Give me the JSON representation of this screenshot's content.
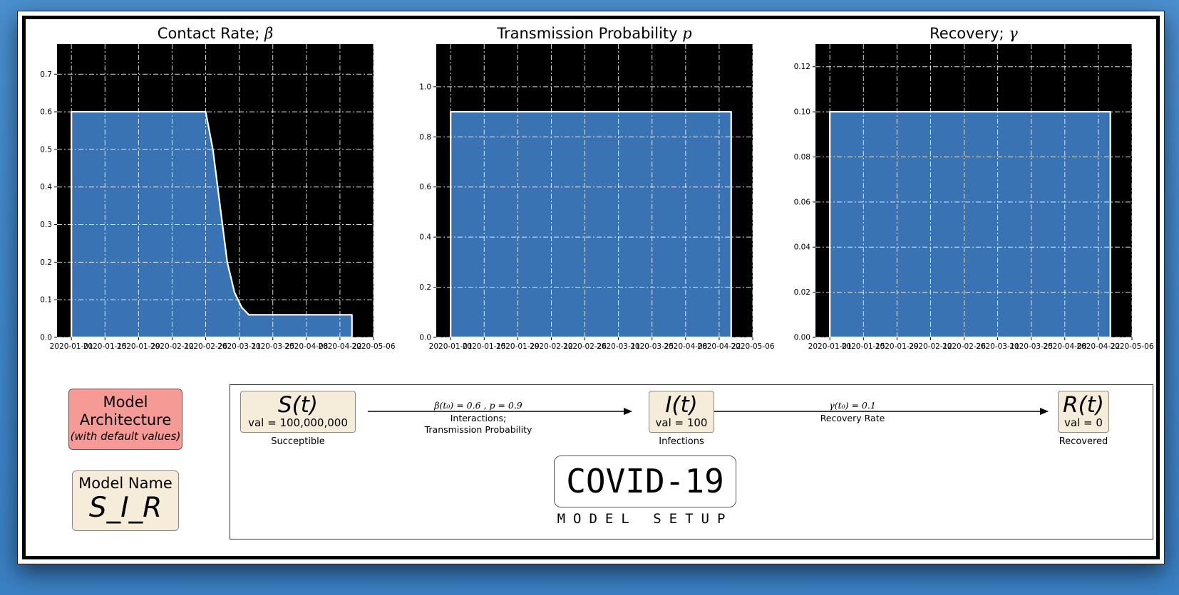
{
  "chart_data": [
    {
      "type": "area",
      "title": "Contact Rate; ",
      "title_symbol": "β",
      "x_dates": [
        "2020-01-01",
        "2020-02-26",
        "2020-02-29",
        "2020-03-03",
        "2020-03-06",
        "2020-03-09",
        "2020-03-12",
        "2020-03-15",
        "2020-04-27"
      ],
      "values": [
        0.6,
        0.6,
        0.5,
        0.35,
        0.2,
        0.12,
        0.08,
        0.06,
        0.06
      ],
      "xticks": [
        "2020-01-01",
        "2020-01-15",
        "2020-01-29",
        "2020-02-12",
        "2020-02-26",
        "2020-03-11",
        "2020-03-25",
        "2020-04-08",
        "2020-04-22",
        "2020-05-06"
      ],
      "yticks": [
        "0.0",
        "0.1",
        "0.2",
        "0.3",
        "0.4",
        "0.5",
        "0.6",
        "0.7"
      ],
      "ylim": [
        0,
        0.78
      ],
      "xlim": [
        "2019-12-26",
        "2020-05-06"
      ],
      "grid": true,
      "background": "#000000",
      "fill_color": "#3a73b3"
    },
    {
      "type": "area",
      "title": "Transmission Probability ",
      "title_symbol": "p",
      "x_dates": [
        "2020-01-01",
        "2020-04-27"
      ],
      "values": [
        0.9,
        0.9
      ],
      "xticks": [
        "2020-01-01",
        "2020-01-15",
        "2020-01-29",
        "2020-02-12",
        "2020-02-26",
        "2020-03-11",
        "2020-03-25",
        "2020-04-08",
        "2020-04-22",
        "2020-05-06"
      ],
      "yticks": [
        "0.0",
        "0.2",
        "0.4",
        "0.6",
        "0.8",
        "1.0"
      ],
      "ylim": [
        0,
        1.17
      ],
      "xlim": [
        "2019-12-26",
        "2020-05-06"
      ],
      "grid": true,
      "background": "#000000",
      "fill_color": "#3a73b3"
    },
    {
      "type": "area",
      "title": "Recovery; ",
      "title_symbol": "γ",
      "x_dates": [
        "2020-01-01",
        "2020-04-27"
      ],
      "values": [
        0.1,
        0.1
      ],
      "xticks": [
        "2020-01-01",
        "2020-01-15",
        "2020-01-29",
        "2020-02-12",
        "2020-02-26",
        "2020-03-11",
        "2020-03-25",
        "2020-04-08",
        "2020-04-22",
        "2020-05-06"
      ],
      "yticks": [
        "0.00",
        "0.02",
        "0.04",
        "0.06",
        "0.08",
        "0.10",
        "0.12"
      ],
      "ylim": [
        0,
        0.13
      ],
      "xlim": [
        "2019-12-26",
        "2020-05-06"
      ],
      "grid": true,
      "background": "#000000",
      "fill_color": "#3a73b3"
    }
  ],
  "architecture": {
    "title": "Model Architecture",
    "subtitle": "(with default values)",
    "color": "#f59a95"
  },
  "model_name": {
    "label": "Model Name",
    "value": "S_I_R"
  },
  "compartments": [
    {
      "symbol": "S(t)",
      "value": "val = 100,000,000",
      "caption": "Succeptible"
    },
    {
      "symbol": "I(t)",
      "value": "val = 100",
      "caption": "Infections"
    },
    {
      "symbol": "R(t)",
      "value": "val = 0",
      "caption": "Recovered"
    }
  ],
  "transitions": [
    {
      "formula": "β(t₀) = 0.6 ,  p = 0.9",
      "description": "Interactions;\nTransmission Probability"
    },
    {
      "formula": "γ(t₀) = 0.1",
      "description": "Recovery Rate"
    }
  ],
  "banner": {
    "title": "COVID-19",
    "subtitle": "MODEL SETUP"
  }
}
